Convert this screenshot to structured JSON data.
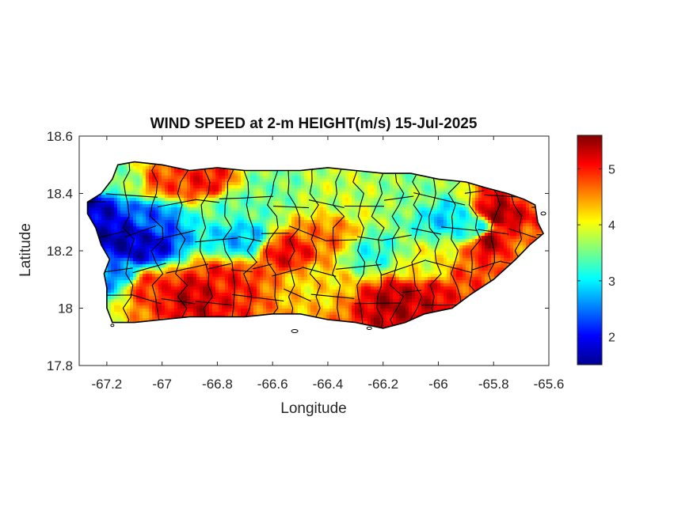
{
  "chart_data": {
    "type": "heatmap",
    "title": "WIND SPEED at 2-m HEIGHT(m/s) 15-Jul-2025",
    "xlabel": "Longitude",
    "ylabel": "Latitude",
    "xlim": [
      -67.3,
      -65.6
    ],
    "ylim": [
      17.8,
      18.6
    ],
    "x_ticks": [
      -67.2,
      -67,
      -66.8,
      -66.6,
      -66.4,
      -66.2,
      -66,
      -65.8,
      -65.6
    ],
    "x_tick_labels": [
      "-67.2",
      "-67",
      "-66.8",
      "-66.6",
      "-66.4",
      "-66.2",
      "-66",
      "-65.8",
      "-65.6"
    ],
    "y_ticks": [
      17.8,
      18,
      18.2,
      18.4,
      18.6
    ],
    "y_tick_labels": [
      "17.8",
      "18",
      "18.2",
      "18.4",
      "18.6"
    ],
    "colorbar": {
      "colormap": "jet",
      "range": [
        1.5,
        5.6
      ],
      "ticks": [
        2,
        3,
        4,
        5
      ],
      "tick_labels": [
        "2",
        "3",
        "4",
        "5"
      ]
    },
    "field_samples": [
      {
        "lon": -67.25,
        "lat": 18.35,
        "value": 1.8
      },
      {
        "lon": -67.15,
        "lat": 18.25,
        "value": 1.7
      },
      {
        "lon": -67.08,
        "lat": 18.22,
        "value": 1.8
      },
      {
        "lon": -67.18,
        "lat": 18.12,
        "value": 2.6
      },
      {
        "lon": -67.05,
        "lat": 18.32,
        "value": 2.4
      },
      {
        "lon": -67.15,
        "lat": 18.45,
        "value": 3.6
      },
      {
        "lon": -67.0,
        "lat": 18.45,
        "value": 4.8
      },
      {
        "lon": -66.85,
        "lat": 18.45,
        "value": 5.0
      },
      {
        "lon": -66.72,
        "lat": 18.25,
        "value": 2.8
      },
      {
        "lon": -66.75,
        "lat": 18.35,
        "value": 3.4
      },
      {
        "lon": -66.62,
        "lat": 18.42,
        "value": 3.5
      },
      {
        "lon": -66.55,
        "lat": 18.2,
        "value": 5.1
      },
      {
        "lon": -66.78,
        "lat": 18.1,
        "value": 5.0
      },
      {
        "lon": -66.9,
        "lat": 18.05,
        "value": 5.3
      },
      {
        "lon": -67.05,
        "lat": 18.08,
        "value": 4.9
      },
      {
        "lon": -66.45,
        "lat": 18.1,
        "value": 4.2
      },
      {
        "lon": -66.35,
        "lat": 18.4,
        "value": 3.8
      },
      {
        "lon": -66.25,
        "lat": 18.2,
        "value": 3.2
      },
      {
        "lon": -66.15,
        "lat": 18.03,
        "value": 5.4
      },
      {
        "lon": -66.05,
        "lat": 18.05,
        "value": 5.2
      },
      {
        "lon": -66.1,
        "lat": 18.4,
        "value": 3.6
      },
      {
        "lon": -65.98,
        "lat": 18.32,
        "value": 2.9
      },
      {
        "lon": -65.88,
        "lat": 18.28,
        "value": 3.1
      },
      {
        "lon": -65.78,
        "lat": 18.34,
        "value": 5.5
      },
      {
        "lon": -65.82,
        "lat": 18.24,
        "value": 5.4
      },
      {
        "lon": -65.7,
        "lat": 18.38,
        "value": 4.9
      },
      {
        "lon": -65.7,
        "lat": 18.22,
        "value": 4.6
      },
      {
        "lon": -65.9,
        "lat": 18.1,
        "value": 4.8
      },
      {
        "lon": -66.4,
        "lat": 18.25,
        "value": 4.6
      },
      {
        "lon": -66.05,
        "lat": 18.15,
        "value": 4.0
      }
    ]
  }
}
